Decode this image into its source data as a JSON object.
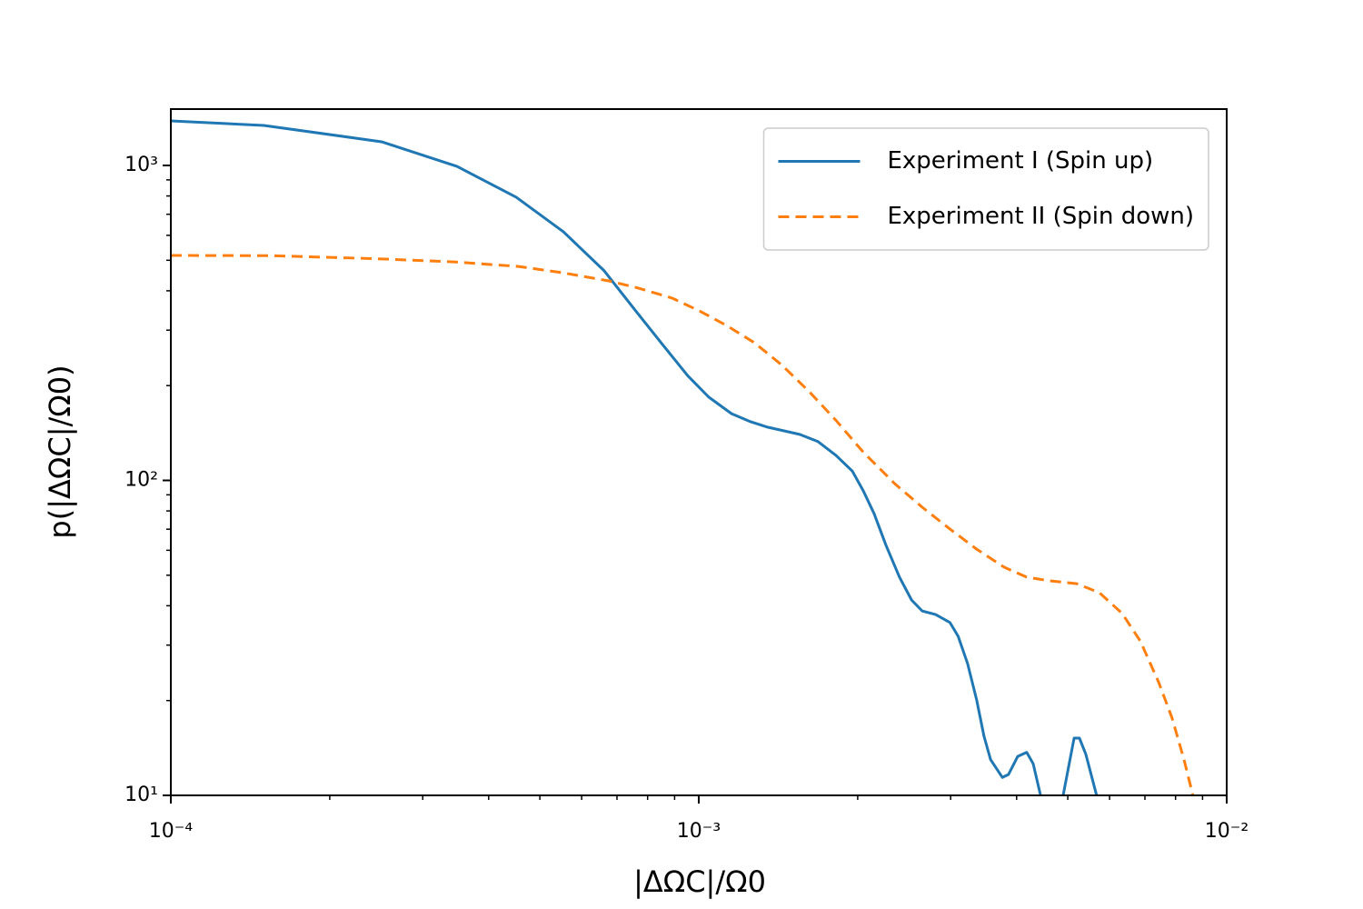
{
  "chart_data": {
    "type": "line",
    "xlabel": "|ΔΩC|/Ω0",
    "ylabel": "p(|ΔΩC|/Ω0)",
    "xscale": "log",
    "yscale": "log",
    "xlim": [
      0.0001,
      0.01
    ],
    "ylim": [
      10,
      1510
    ],
    "xticks": [
      {
        "value": 0.0001,
        "label": "10⁻⁴"
      },
      {
        "value": 0.001,
        "label": "10⁻³"
      },
      {
        "value": 0.01,
        "label": "10⁻²"
      }
    ],
    "yticks": [
      {
        "value": 10,
        "label": "10¹"
      },
      {
        "value": 100,
        "label": "10²"
      },
      {
        "value": 1000,
        "label": "10³"
      }
    ],
    "xminorticks": [
      0.0002,
      0.0003,
      0.0004,
      0.0005,
      0.0006,
      0.0007,
      0.0008,
      0.0009,
      0.002,
      0.003,
      0.004,
      0.005,
      0.006,
      0.007,
      0.008,
      0.009
    ],
    "yminorticks": [
      20,
      30,
      40,
      50,
      60,
      70,
      80,
      90,
      200,
      300,
      400,
      500,
      600,
      700,
      800,
      900
    ],
    "grid": false,
    "legend": "upper right",
    "series": [
      {
        "name": "Experiment I (Spin up)",
        "color": "#1f77b4",
        "style": "solid",
        "x": [
          0.0001,
          0.00015,
          0.0002507,
          0.0003485,
          0.000451,
          0.000554,
          0.000662,
          0.00076,
          0.000857,
          0.000953,
          0.001044,
          0.001153,
          0.001248,
          0.001352,
          0.001553,
          0.00168,
          0.00182,
          0.001954,
          0.002049,
          0.002148,
          0.002263,
          0.0024,
          0.00253,
          0.00265,
          0.00281,
          0.00299,
          0.0031,
          0.00323,
          0.00336,
          0.00347,
          0.00357,
          0.00376,
          0.00386,
          0.00402,
          0.00418,
          0.0043,
          0.00444,
          null,
          0.0049,
          0.00514,
          0.00526,
          0.00541,
          0.00567
        ],
        "values": [
          1385,
          1340,
          1189,
          993,
          793,
          616,
          463,
          345,
          268,
          215,
          184,
          163,
          154,
          147.5,
          140,
          133,
          120,
          107,
          92.7,
          78.5,
          62.2,
          49.3,
          41.7,
          38.5,
          37.5,
          35.4,
          32.0,
          26.2,
          20.1,
          15.4,
          13.0,
          11.4,
          11.65,
          13.3,
          13.7,
          12.6,
          10,
          null,
          10,
          15.2,
          15.2,
          13.5,
          10
        ]
      },
      {
        "name": "Experiment II (Spin down)",
        "color": "#ff7f0e",
        "style": "dashed",
        "x": [
          0.0001,
          0.0001559,
          0.0002507,
          0.000344,
          0.000455,
          0.000554,
          0.000675,
          0.00076,
          0.000891,
          0.001004,
          0.00113,
          0.001273,
          0.001434,
          0.001616,
          0.00182,
          0.002049,
          0.00235,
          0.00265,
          0.00299,
          0.00336,
          0.00379,
          0.00418,
          0.00462,
          0.0052,
          0.00574,
          0.00634,
          0.00686,
          0.00743,
          0.00788,
          0.0083,
          0.00863
        ],
        "values": [
          518,
          517,
          505,
          494,
          478,
          456,
          430,
          410,
          379,
          345,
          310,
          274,
          233,
          192,
          155,
          123,
          97.7,
          82.2,
          70.1,
          60.5,
          53.0,
          49.3,
          48.0,
          47.0,
          44.0,
          37.8,
          30.9,
          22.9,
          17.6,
          13.0,
          10
        ]
      }
    ]
  }
}
